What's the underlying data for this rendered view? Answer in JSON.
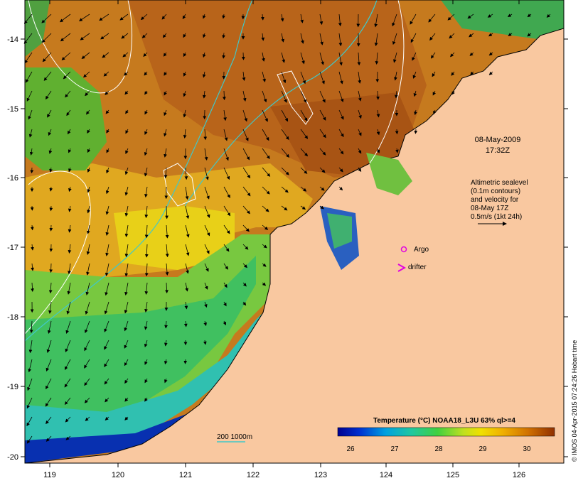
{
  "map": {
    "lon_ticks": [
      "119",
      "120",
      "121",
      "122",
      "123",
      "124",
      "125",
      "126"
    ],
    "lat_ticks": [
      "-14",
      "-15",
      "-16",
      "-17",
      "-18",
      "-19",
      "-20"
    ],
    "lon_range": [
      118.6,
      126.7
    ],
    "lat_range": [
      -13.6,
      -20.1
    ]
  },
  "annotation": {
    "date": "08-May-2009",
    "time": "17:32Z"
  },
  "info": {
    "line1": "Altimetric sealevel",
    "line2": "(0.1m contours)",
    "line3": "and velocity for",
    "line4": "08-May 17Z",
    "line5": "0.5m/s (1kt 24h)"
  },
  "markers": {
    "argo_label": "Argo",
    "drifter_label": "drifter",
    "argo_color": "#e000e0",
    "drifter_color": "#e000e0"
  },
  "depth_legend": {
    "label": "200  1000m",
    "color": "#40c8c8"
  },
  "colorbar": {
    "title": "Temperature (°C) NOAA18_L3U 63% ql>=4",
    "ticks": [
      "26",
      "27",
      "28",
      "29",
      "30"
    ]
  },
  "credit": "© IMOS 04-Apr-2015 07:24:26 Hobart time",
  "colors": {
    "land": "#f9c8a0",
    "warm": "#c86a10",
    "mid": "#e8c020",
    "cool": "#3cc060",
    "cold": "#0820a0"
  }
}
